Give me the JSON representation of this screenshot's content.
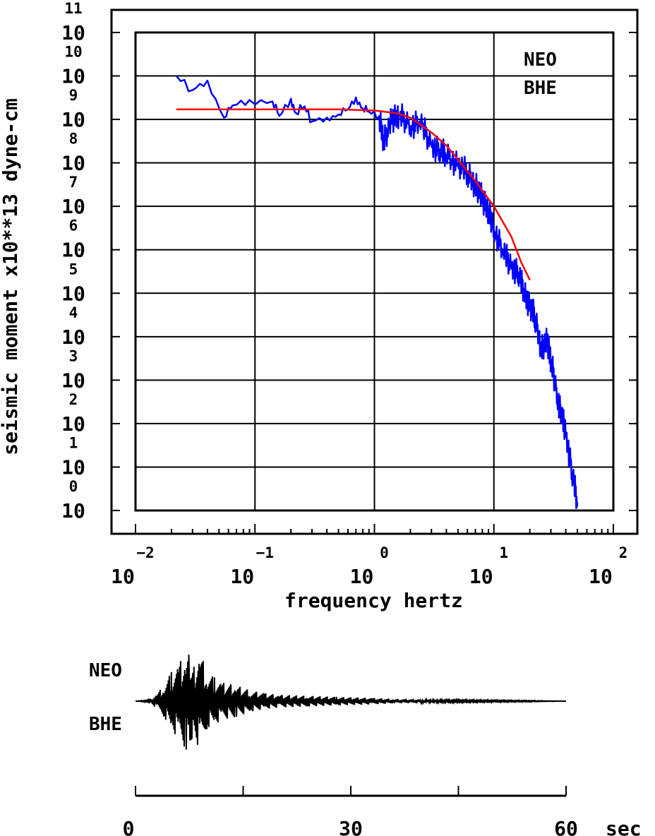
{
  "spectrum": {
    "chart_data": {
      "type": "line",
      "x_scale": "log",
      "y_scale": "log",
      "xlabel": "frequency  hertz",
      "ylabel": "seismic moment x10**13 dyne-cm",
      "xlim": [
        0.01,
        100
      ],
      "ylim": [
        1,
        100000000000
      ],
      "grid": true,
      "x_ticks": [
        {
          "base": "10",
          "exp": "−2"
        },
        {
          "base": "10",
          "exp": "−1"
        },
        {
          "base": "10",
          "exp": "0"
        },
        {
          "base": "10",
          "exp": "1"
        },
        {
          "base": "10",
          "exp": "2"
        }
      ],
      "y_ticks": [
        {
          "base": "10",
          "exp": "0"
        },
        {
          "base": "10",
          "exp": "1"
        },
        {
          "base": "10",
          "exp": "2"
        },
        {
          "base": "10",
          "exp": "3"
        },
        {
          "base": "10",
          "exp": "4"
        },
        {
          "base": "10",
          "exp": "5"
        },
        {
          "base": "10",
          "exp": "6"
        },
        {
          "base": "10",
          "exp": "7"
        },
        {
          "base": "10",
          "exp": "8"
        },
        {
          "base": "10",
          "exp": "9"
        },
        {
          "base": "10",
          "exp": "10"
        },
        {
          "base": "10",
          "exp": "11"
        }
      ],
      "annotations": [
        "NEO",
        "BHE"
      ],
      "series": [
        {
          "color": "#0000ff",
          "points": [
            [
              0.022,
              10000000000
            ],
            [
              0.03,
              4700000000
            ],
            [
              0.04,
              7800000000
            ],
            [
              0.055,
              1100000000
            ],
            [
              0.065,
              2100000000
            ],
            [
              0.09,
              2800000000
            ],
            [
              0.14,
              2600000000
            ],
            [
              0.16,
              1200000000
            ],
            [
              0.2,
              3000000000
            ],
            [
              0.22,
              1400000000
            ],
            [
              0.26,
              2000000000
            ],
            [
              0.3,
              900000000
            ],
            [
              0.4,
              1100000000
            ],
            [
              0.5,
              1300000000
            ],
            [
              0.6,
              1700000000
            ],
            [
              0.7,
              3200000000
            ],
            [
              0.8,
              1800000000
            ],
            [
              0.9,
              1500000000
            ],
            [
              1.1,
              1200000000
            ],
            [
              1.2,
              300000000
            ],
            [
              1.4,
              1000000000
            ],
            [
              1.6,
              1300000000
            ],
            [
              2.0,
              700000000
            ],
            [
              2.4,
              900000000
            ],
            [
              3.0,
              250000000
            ],
            [
              3.5,
              200000000
            ],
            [
              4.0,
              150000000
            ],
            [
              5.0,
              90000000
            ],
            [
              6.0,
              60000000
            ],
            [
              7.0,
              30000000
            ],
            [
              8.0,
              15000000
            ],
            [
              9.0,
              8000000
            ],
            [
              10.0,
              3000000
            ],
            [
              12.0,
              900000
            ],
            [
              14.0,
              400000
            ],
            [
              16.0,
              300000
            ],
            [
              18.0,
              100000
            ],
            [
              20.0,
              50000
            ],
            [
              22.0,
              30000
            ],
            [
              25.0,
              5000
            ],
            [
              28.0,
              8000
            ],
            [
              30.0,
              3000
            ],
            [
              34.0,
              400
            ],
            [
              37.0,
              150
            ],
            [
              40.0,
              60
            ],
            [
              45.0,
              8
            ],
            [
              50.0,
              1.5
            ]
          ]
        },
        {
          "color": "#ff0000",
          "points": [
            [
              0.022,
              1700000000
            ],
            [
              0.05,
              1700000000
            ],
            [
              0.1,
              1700000000
            ],
            [
              0.2,
              1700000000
            ],
            [
              0.5,
              1700000000
            ],
            [
              1.0,
              1600000000
            ],
            [
              1.5,
              1400000000
            ],
            [
              2.0,
              1100000000
            ],
            [
              3.0,
              500000000
            ],
            [
              4.0,
              250000000
            ],
            [
              5.0,
              120000000
            ],
            [
              7.0,
              38000000
            ],
            [
              10.0,
              10000000
            ],
            [
              14.0,
              2000000
            ],
            [
              17.0,
              500000
            ],
            [
              20.0,
              200000
            ]
          ]
        }
      ]
    }
  },
  "seismogram": {
    "chart_data": {
      "type": "line",
      "xlim": [
        0,
        60
      ],
      "x_ticks": [
        "0",
        "30",
        "60"
      ],
      "x_unit": "sec",
      "annotations": [
        "NEO",
        "BHE"
      ],
      "series": [
        {
          "color": "#000000",
          "points": [
            [
              0,
              0
            ],
            [
              2,
              0.02
            ],
            [
              3,
              -0.15
            ],
            [
              4,
              0.3
            ],
            [
              5,
              -0.55
            ],
            [
              6,
              0.7
            ],
            [
              7,
              -0.9
            ],
            [
              7.5,
              1.0
            ],
            [
              8,
              -0.6
            ],
            [
              9,
              0.95
            ],
            [
              10,
              -0.5
            ],
            [
              11,
              0.45
            ],
            [
              12,
              -0.35
            ],
            [
              14,
              0.3
            ],
            [
              16,
              -0.2
            ],
            [
              18,
              0.15
            ],
            [
              20,
              -0.12
            ],
            [
              24,
              0.1
            ],
            [
              28,
              -0.08
            ],
            [
              33,
              0.06
            ],
            [
              36,
              -0.04
            ],
            [
              40,
              0.03
            ],
            [
              45,
              -0.02
            ],
            [
              50,
              0.015
            ],
            [
              55,
              -0.01
            ],
            [
              60,
              0
            ]
          ]
        }
      ]
    }
  }
}
